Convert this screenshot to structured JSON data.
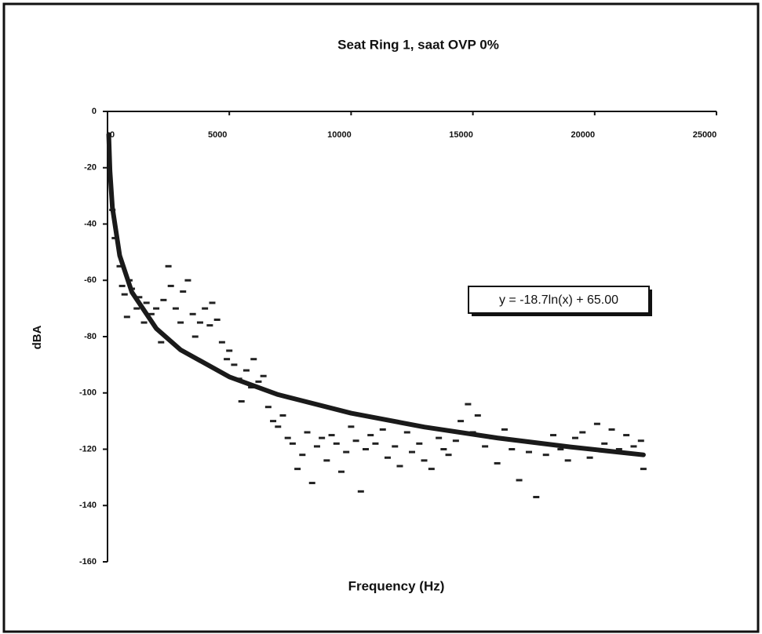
{
  "chart_data": {
    "type": "scatter",
    "title": "Seat Ring 1, saat OVP 0%",
    "xlabel": "Frequency (Hz)",
    "ylabel": "dBA",
    "x": [
      200,
      300,
      500,
      600,
      700,
      800,
      900,
      1000,
      1200,
      1300,
      1500,
      1600,
      1800,
      2000,
      2200,
      2300,
      2500,
      2600,
      2800,
      3000,
      3100,
      3300,
      3500,
      3600,
      3800,
      4000,
      4200,
      4300,
      4500,
      4700,
      4900,
      5000,
      5200,
      5400,
      5500,
      5700,
      5900,
      6000,
      6200,
      6400,
      6600,
      6800,
      7000,
      7200,
      7400,
      7600,
      7800,
      8000,
      8200,
      8400,
      8600,
      8800,
      9000,
      9200,
      9400,
      9600,
      9800,
      10000,
      10200,
      10400,
      10600,
      10800,
      11000,
      11300,
      11500,
      11800,
      12000,
      12300,
      12500,
      12800,
      13000,
      13300,
      13600,
      13800,
      14000,
      14300,
      14500,
      14800,
      15000,
      15200,
      15500,
      15800,
      16000,
      16300,
      16600,
      16900,
      17100,
      17300,
      17600,
      17800,
      18000,
      18300,
      18600,
      18900,
      19200,
      19500,
      19800,
      20100,
      20400,
      20700,
      21000,
      21300,
      21600,
      21900,
      22000
    ],
    "values": [
      -35,
      -45,
      -55,
      -62,
      -65,
      -73,
      -60,
      -63,
      -70,
      -66,
      -75,
      -68,
      -72,
      -70,
      -82,
      -67,
      -55,
      -62,
      -70,
      -75,
      -64,
      -60,
      -72,
      -80,
      -75,
      -70,
      -76,
      -68,
      -74,
      -82,
      -88,
      -85,
      -90,
      -95,
      -103,
      -92,
      -98,
      -88,
      -96,
      -94,
      -105,
      -110,
      -112,
      -108,
      -116,
      -118,
      -127,
      -122,
      -114,
      -132,
      -119,
      -116,
      -124,
      -115,
      -118,
      -128,
      -121,
      -112,
      -117,
      -135,
      -120,
      -115,
      -118,
      -113,
      -123,
      -119,
      -126,
      -114,
      -121,
      -118,
      -124,
      -127,
      -116,
      -120,
      -122,
      -117,
      -110,
      -104,
      -114,
      -108,
      -119,
      -116,
      -125,
      -113,
      -120,
      -131,
      -117,
      -121,
      -137,
      -118,
      -122,
      -115,
      -120,
      -124,
      -116,
      -114,
      -123,
      -111,
      -118,
      -113,
      -120,
      -115,
      -119,
      -117,
      -127
    ],
    "color": "#222222",
    "trendline": {
      "label": "y = -18.7ln(x) + 65.00",
      "color": "#1a1a1a",
      "x": [
        50,
        100,
        200,
        500,
        1000,
        2000,
        3000,
        5000,
        7000,
        10000,
        13000,
        16000,
        19000,
        22000
      ],
      "values": [
        -8.2,
        -21.1,
        -34.1,
        -51.2,
        -64.2,
        -77.1,
        -84.7,
        -94.3,
        -100.6,
        -107.2,
        -112.1,
        -116.0,
        -119.2,
        -122.0
      ]
    },
    "xlim": [
      0,
      25000
    ],
    "ylim": [
      -160,
      0
    ],
    "xticks": [
      0,
      5000,
      10000,
      15000,
      20000,
      25000
    ],
    "yticks": [
      0,
      -20,
      -40,
      -60,
      -80,
      -100,
      -120,
      -140,
      -160
    ]
  }
}
